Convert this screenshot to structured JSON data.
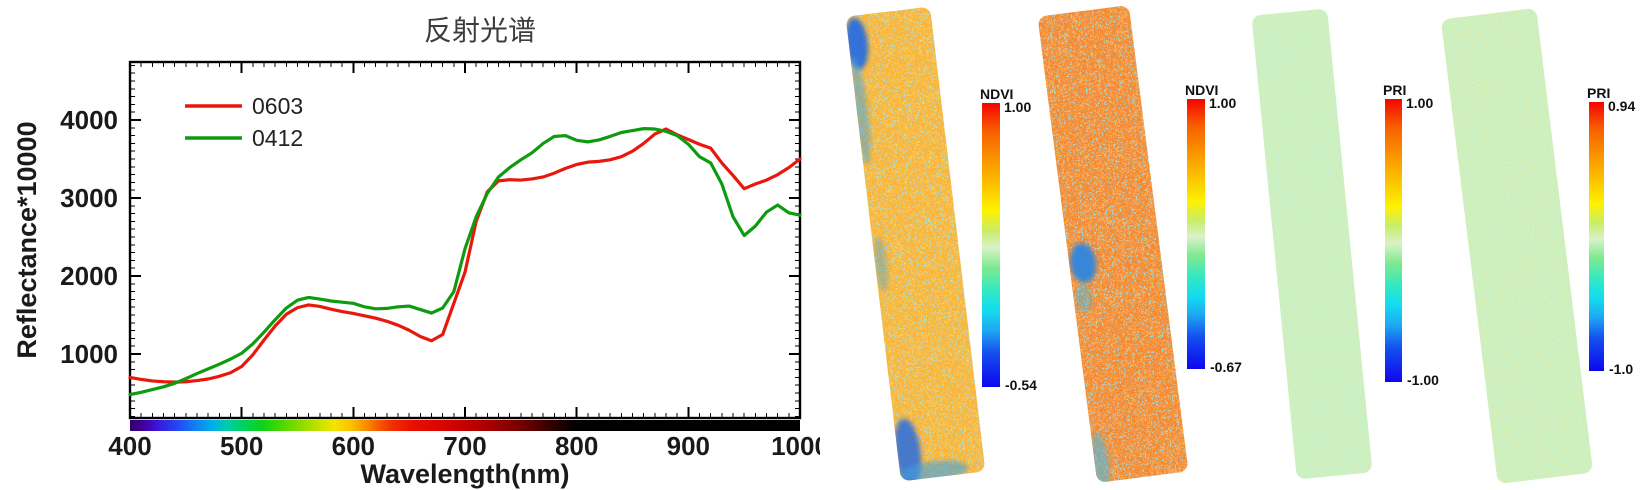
{
  "figure": {
    "background": "#ffffff"
  },
  "chart_data": {
    "type": "line",
    "title": "反射光谱",
    "xlabel": "Wavelength(nm)",
    "ylabel": "Reflectance*10000",
    "xlim": [
      400,
      1000
    ],
    "ylim": [
      180,
      4744
    ],
    "xticks": [
      400,
      500,
      600,
      700,
      800,
      900,
      1000
    ],
    "yticks": [
      1000,
      2000,
      3000,
      4000
    ],
    "x_minor_step": 10,
    "y_minor_step": 100,
    "grid": false,
    "legend_position": "upper-left",
    "x_start": 400,
    "x_step": 10,
    "series": [
      {
        "name": "0603",
        "color": "#e8180c",
        "values": [
          700,
          675,
          655,
          645,
          640,
          645,
          660,
          680,
          715,
          760,
          840,
          990,
          1180,
          1360,
          1510,
          1595,
          1630,
          1610,
          1575,
          1545,
          1520,
          1490,
          1460,
          1420,
          1370,
          1305,
          1225,
          1170,
          1250,
          1650,
          2050,
          2700,
          3080,
          3220,
          3235,
          3230,
          3245,
          3270,
          3320,
          3380,
          3430,
          3460,
          3470,
          3490,
          3530,
          3600,
          3700,
          3820,
          3885,
          3810,
          3750,
          3690,
          3640,
          3450,
          3290,
          3120,
          3180,
          3230,
          3300,
          3390,
          3500
        ]
      },
      {
        "name": "0412",
        "color": "#0f9b0f",
        "values": [
          480,
          510,
          545,
          580,
          625,
          685,
          750,
          810,
          870,
          935,
          1010,
          1130,
          1280,
          1440,
          1590,
          1690,
          1725,
          1705,
          1680,
          1665,
          1650,
          1605,
          1580,
          1585,
          1605,
          1615,
          1570,
          1525,
          1590,
          1800,
          2350,
          2760,
          3060,
          3270,
          3390,
          3490,
          3580,
          3700,
          3790,
          3800,
          3740,
          3720,
          3745,
          3790,
          3840,
          3865,
          3890,
          3885,
          3855,
          3800,
          3690,
          3530,
          3450,
          3180,
          2760,
          2520,
          2640,
          2820,
          2910,
          2810,
          2780
        ]
      }
    ],
    "spectrum_bar": {
      "stops": [
        [
          0,
          "#30006a"
        ],
        [
          2,
          "#40009e"
        ],
        [
          4,
          "#3b14d8"
        ],
        [
          7,
          "#2446f2"
        ],
        [
          10,
          "#0e86f0"
        ],
        [
          12.5,
          "#00b2e8"
        ],
        [
          14.5,
          "#00ccaa"
        ],
        [
          17,
          "#00d25c"
        ],
        [
          20,
          "#12d212"
        ],
        [
          23,
          "#55d800"
        ],
        [
          26,
          "#96dc00"
        ],
        [
          28.5,
          "#cce200"
        ],
        [
          30.5,
          "#f2e600"
        ],
        [
          33,
          "#fcc000"
        ],
        [
          35,
          "#fa9200"
        ],
        [
          37,
          "#f75c00"
        ],
        [
          39,
          "#f33000"
        ],
        [
          42,
          "#ea1000"
        ],
        [
          46,
          "#dc0600"
        ],
        [
          50,
          "#c40000"
        ],
        [
          54,
          "#a20000"
        ],
        [
          58,
          "#7a0000"
        ],
        [
          61,
          "#4e0000"
        ],
        [
          63.5,
          "#280000"
        ],
        [
          66,
          "#060000"
        ],
        [
          68,
          "#000000"
        ],
        [
          100,
          "#000000"
        ]
      ]
    },
    "text_color": "#1a1a1a",
    "title_color": "#3d3d3d"
  },
  "index_colorbar": {
    "stops": [
      [
        0,
        "#f50400"
      ],
      [
        10,
        "#f66000"
      ],
      [
        20,
        "#f99500"
      ],
      [
        30,
        "#fcc800"
      ],
      [
        38,
        "#fdf200"
      ],
      [
        45,
        "#c9ec6a"
      ],
      [
        51,
        "#d9f2c8"
      ],
      [
        58,
        "#7fe98f"
      ],
      [
        66,
        "#32e9c3"
      ],
      [
        73,
        "#12dcef"
      ],
      [
        80,
        "#1ea8f2"
      ],
      [
        88,
        "#154fee"
      ],
      [
        100,
        "#0d06ee"
      ]
    ]
  },
  "maps": [
    {
      "kind": "NDVI",
      "colorbar": {
        "title": "NDVI",
        "max": "1.00",
        "min": "-0.54"
      },
      "noise": {
        "seed": 7,
        "frequency": 0.45,
        "octaves": 3
      },
      "palette": [
        "#1133dd",
        "#2f86e8",
        "#41c4e4",
        "#f5820a",
        "#f07010",
        "#ddc01e",
        "#44bde2",
        "#e03008"
      ],
      "patch_colors": [
        "#2b6de0",
        "#3fa0e0"
      ]
    },
    {
      "kind": "NDVI",
      "colorbar": {
        "title": "NDVI",
        "max": "1.00",
        "min": "-0.67"
      },
      "noise": {
        "seed": 13,
        "frequency": 0.5,
        "octaves": 3
      },
      "palette": [
        "#0f2fd8",
        "#3a9ae4",
        "#3fc8dc",
        "#ea4e0e",
        "#e63c08",
        "#ef8812",
        "#b0d83c",
        "#d21f00"
      ],
      "patch_colors": [
        "#2e86e0",
        "#49b9e6"
      ]
    },
    {
      "kind": "PRI",
      "colorbar": {
        "title": "PRI",
        "max": "1.00",
        "min": "-1.00"
      },
      "noise": {
        "seed": 21,
        "frequency": 0.8,
        "octaves": 2
      },
      "palette": [
        "#35a8d8",
        "#52cfc0",
        "#7ed9a8",
        "#98dd88",
        "#a2e18a",
        "#b9e070",
        "#d9b855",
        "#e08a3c"
      ],
      "patch_colors": []
    },
    {
      "kind": "PRI",
      "colorbar": {
        "title": "PRI",
        "max": "0.94",
        "min": "-1.0"
      },
      "noise": {
        "seed": 29,
        "frequency": 0.75,
        "octaves": 2
      },
      "palette": [
        "#35a8d8",
        "#55d0bd",
        "#82d99e",
        "#97dc85",
        "#a4e184",
        "#cfd95e",
        "#e09a44",
        "#df7524"
      ],
      "patch_colors": []
    }
  ]
}
